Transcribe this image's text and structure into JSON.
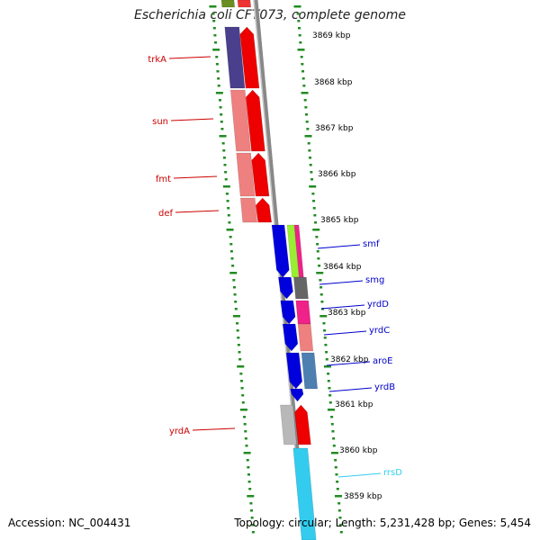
{
  "title": "Escherichia coli CFT073, complete genome",
  "footer": {
    "accession": "Accession: NC_004431",
    "topology": "Topology: circular; Length: 5,231,428 bp; Genes: 5,454"
  },
  "scale_labels": [
    "3869 kbp",
    "3868 kbp",
    "3867 kbp",
    "3866 kbp",
    "3865 kbp",
    "3864 kbp",
    "3863 kbp",
    "3862 kbp",
    "3861 kbp",
    "3860 kbp",
    "3859 kbp"
  ],
  "colors": {
    "forward_label": "#cc0000",
    "reverse_label": "#0000cc",
    "rna_label": "#33ccee",
    "backbone": "#888888",
    "tick": "#228b22"
  },
  "genes_left": [
    {
      "name": "trkA"
    },
    {
      "name": "sun"
    },
    {
      "name": "fmt"
    },
    {
      "name": "def"
    },
    {
      "name": "yrdA"
    }
  ],
  "genes_right": [
    {
      "name": "smf"
    },
    {
      "name": "smg"
    },
    {
      "name": "yrdD"
    },
    {
      "name": "yrdC"
    },
    {
      "name": "aroE"
    },
    {
      "name": "yrdB"
    },
    {
      "name": "rrsD"
    }
  ]
}
